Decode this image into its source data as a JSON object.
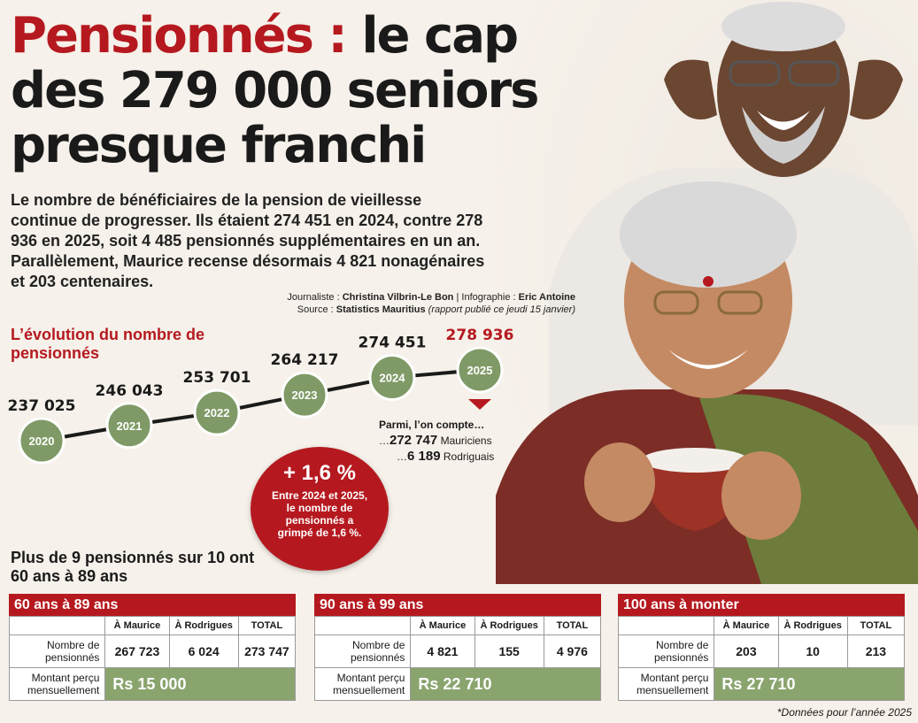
{
  "headline": {
    "part1": "Pensionnés :",
    "part2": " le cap",
    "line2": "des 279 000 seniors",
    "line3": "presque franchi"
  },
  "intro": "Le nombre de bénéficiaires de la pension de vieillesse continue de progresser. Ils étaient 274 451 en 2024, contre 278 936 en 2025, soit 4 485 pensionnés supplémentaires en un an. Parallèlement, Maurice recense désormais 4 821 nonagénaires et 203 centenaires.",
  "credits": {
    "journalist_label": "Journaliste : ",
    "journalist": "Christina Vilbrin-Le Bon",
    "sep": " | ",
    "infographic_label": "Infographie : ",
    "infographic": "Eric Antoine",
    "source_label": "Source : ",
    "source": "Statistics Mauritius",
    "source_note": " (rapport publié ce jeudi 15 janvier)"
  },
  "colors": {
    "red": "#b5191f",
    "green": "#7f9a66",
    "line": "#1a1a1a"
  },
  "chart_data": {
    "type": "line",
    "title": "L’évolution du nombre de pensionnés",
    "x": [
      "2020",
      "2021",
      "2022",
      "2023",
      "2024",
      "2025"
    ],
    "values": [
      237025,
      246043,
      253701,
      264217,
      274451,
      278936
    ],
    "value_labels": [
      "237 025",
      "246 043",
      "253 701",
      "264 217",
      "274 451",
      "278 936"
    ],
    "highlight": "2025",
    "ylim": [
      237025,
      278936
    ]
  },
  "extra": {
    "intro": "Parmi, l’on compte…",
    "mauriciens_value": "272 747",
    "mauriciens_label": " Mauriciens",
    "rodriguais_value": "6 189",
    "rodriguais_label": " Rodriguais"
  },
  "bubble": {
    "big": "+ 1,6 %",
    "small": "Entre 2024 et 2025, le nombre de pensionnés a grimpé de 1,6 %."
  },
  "subtitle2": "Plus de 9 pensionnés sur 10 ont 60 ans à 89 ans",
  "tables": [
    {
      "title": "60 ans à 89 ans",
      "col1": "À Maurice",
      "col2": "À Rodrigues",
      "col3": "TOTAL",
      "row1_label": "Nombre de pensionnés",
      "maurice": "267 723",
      "rodrigues": "6 024",
      "total": "273 747",
      "row2_label": "Montant perçu mensuellement",
      "amount": "Rs 15 000"
    },
    {
      "title": "90 ans à 99 ans",
      "col1": "À Maurice",
      "col2": "À Rodrigues",
      "col3": "TOTAL",
      "row1_label": "Nombre de pensionnés",
      "maurice": "4 821",
      "rodrigues": "155",
      "total": "4 976",
      "row2_label": "Montant perçu mensuellement",
      "amount": "Rs 22 710"
    },
    {
      "title": "100 ans à monter",
      "col1": "À Maurice",
      "col2": "À Rodrigues",
      "col3": "TOTAL",
      "row1_label": "Nombre de pensionnés",
      "maurice": "203",
      "rodrigues": "10",
      "total": "213",
      "row2_label": "Montant perçu mensuellement",
      "amount": "Rs 27 710"
    }
  ],
  "footnote": "*Données pour l’année 2025"
}
